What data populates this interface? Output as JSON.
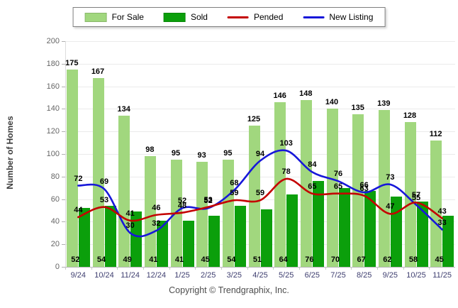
{
  "legend": {
    "items": [
      {
        "label": "For Sale",
        "swatch": "bar",
        "color": "#a1d77e"
      },
      {
        "label": "Sold",
        "swatch": "bar",
        "color": "#0b9f0b"
      },
      {
        "label": "Pended",
        "swatch": "line",
        "color": "#c40000"
      },
      {
        "label": "New Listing",
        "swatch": "line",
        "color": "#1717d9"
      }
    ]
  },
  "y_axis": {
    "title": "Number of Homes"
  },
  "footer": {
    "copyright": "Copyright © Trendgraphix, Inc."
  },
  "colors": {
    "for_sale": "#a1d77e",
    "sold": "#0b9f0b",
    "pended": "#c40000",
    "new_listing": "#1717d9",
    "grid": "#ebebeb",
    "axis": "#b5b5b5"
  },
  "chart_data": {
    "type": "bar",
    "subtype": "grouped bars with smoothed overlay lines",
    "title": "",
    "xlabel": "",
    "ylabel": "Number of Homes",
    "ylim": [
      0,
      200
    ],
    "ytick_step": 20,
    "grid": true,
    "legend_position": "top",
    "categories": [
      "9/24",
      "10/24",
      "11/24",
      "12/24",
      "1/25",
      "2/25",
      "3/25",
      "4/25",
      "5/25",
      "6/25",
      "7/25",
      "8/25",
      "9/25",
      "10/25",
      "11/25"
    ],
    "series": [
      {
        "name": "For Sale",
        "type": "bar",
        "color": "#a1d77e",
        "values": [
          175,
          167,
          134,
          98,
          95,
          93,
          95,
          125,
          146,
          148,
          140,
          135,
          139,
          128,
          112
        ]
      },
      {
        "name": "Sold",
        "type": "bar",
        "color": "#0b9f0b",
        "values": [
          52,
          54,
          49,
          41,
          41,
          45,
          54,
          51,
          64,
          76,
          70,
          67,
          62,
          58,
          45
        ]
      },
      {
        "name": "Pended",
        "type": "line",
        "color": "#c40000",
        "values": [
          44,
          53,
          41,
          46,
          48,
          53,
          59,
          59,
          78,
          65,
          65,
          63,
          47,
          57,
          43
        ]
      },
      {
        "name": "New Listing",
        "type": "line",
        "color": "#1717d9",
        "values": [
          72,
          69,
          30,
          32,
          52,
          52,
          68,
          94,
          103,
          84,
          76,
          66,
          73,
          55,
          33
        ]
      }
    ]
  }
}
